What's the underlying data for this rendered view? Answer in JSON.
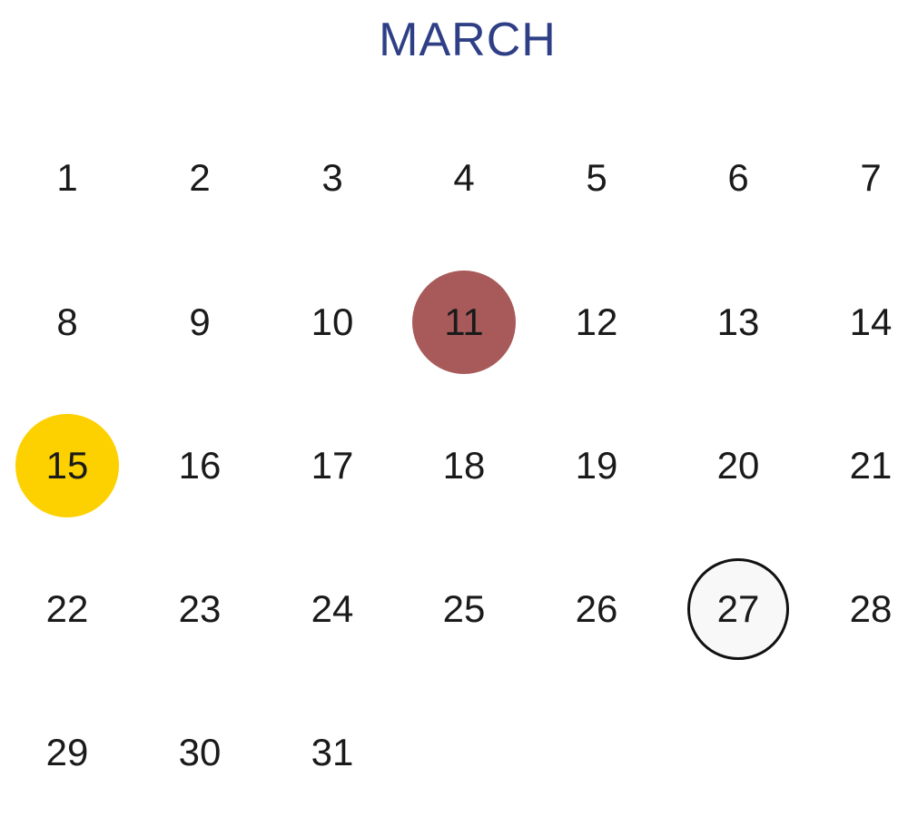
{
  "calendar": {
    "month": "MARCH",
    "days": [
      {
        "label": "1"
      },
      {
        "label": "2"
      },
      {
        "label": "3"
      },
      {
        "label": "4"
      },
      {
        "label": "5"
      },
      {
        "label": "6"
      },
      {
        "label": "7"
      },
      {
        "label": "8"
      },
      {
        "label": "9"
      },
      {
        "label": "10"
      },
      {
        "label": "11",
        "highlight": "red"
      },
      {
        "label": "12"
      },
      {
        "label": "13"
      },
      {
        "label": "14"
      },
      {
        "label": "15",
        "highlight": "yellow"
      },
      {
        "label": "16"
      },
      {
        "label": "17"
      },
      {
        "label": "18"
      },
      {
        "label": "19"
      },
      {
        "label": "20"
      },
      {
        "label": "21"
      },
      {
        "label": "22"
      },
      {
        "label": "23"
      },
      {
        "label": "24"
      },
      {
        "label": "25"
      },
      {
        "label": "26"
      },
      {
        "label": "27",
        "highlight": "outline"
      },
      {
        "label": "28"
      },
      {
        "label": "29"
      },
      {
        "label": "30"
      },
      {
        "label": "31"
      }
    ]
  },
  "colors": {
    "title": "#2f3f86",
    "highlight_red": "#a85a5b",
    "highlight_yellow": "#fdd100",
    "outline": "#111111",
    "text": "#1a1a1a"
  }
}
